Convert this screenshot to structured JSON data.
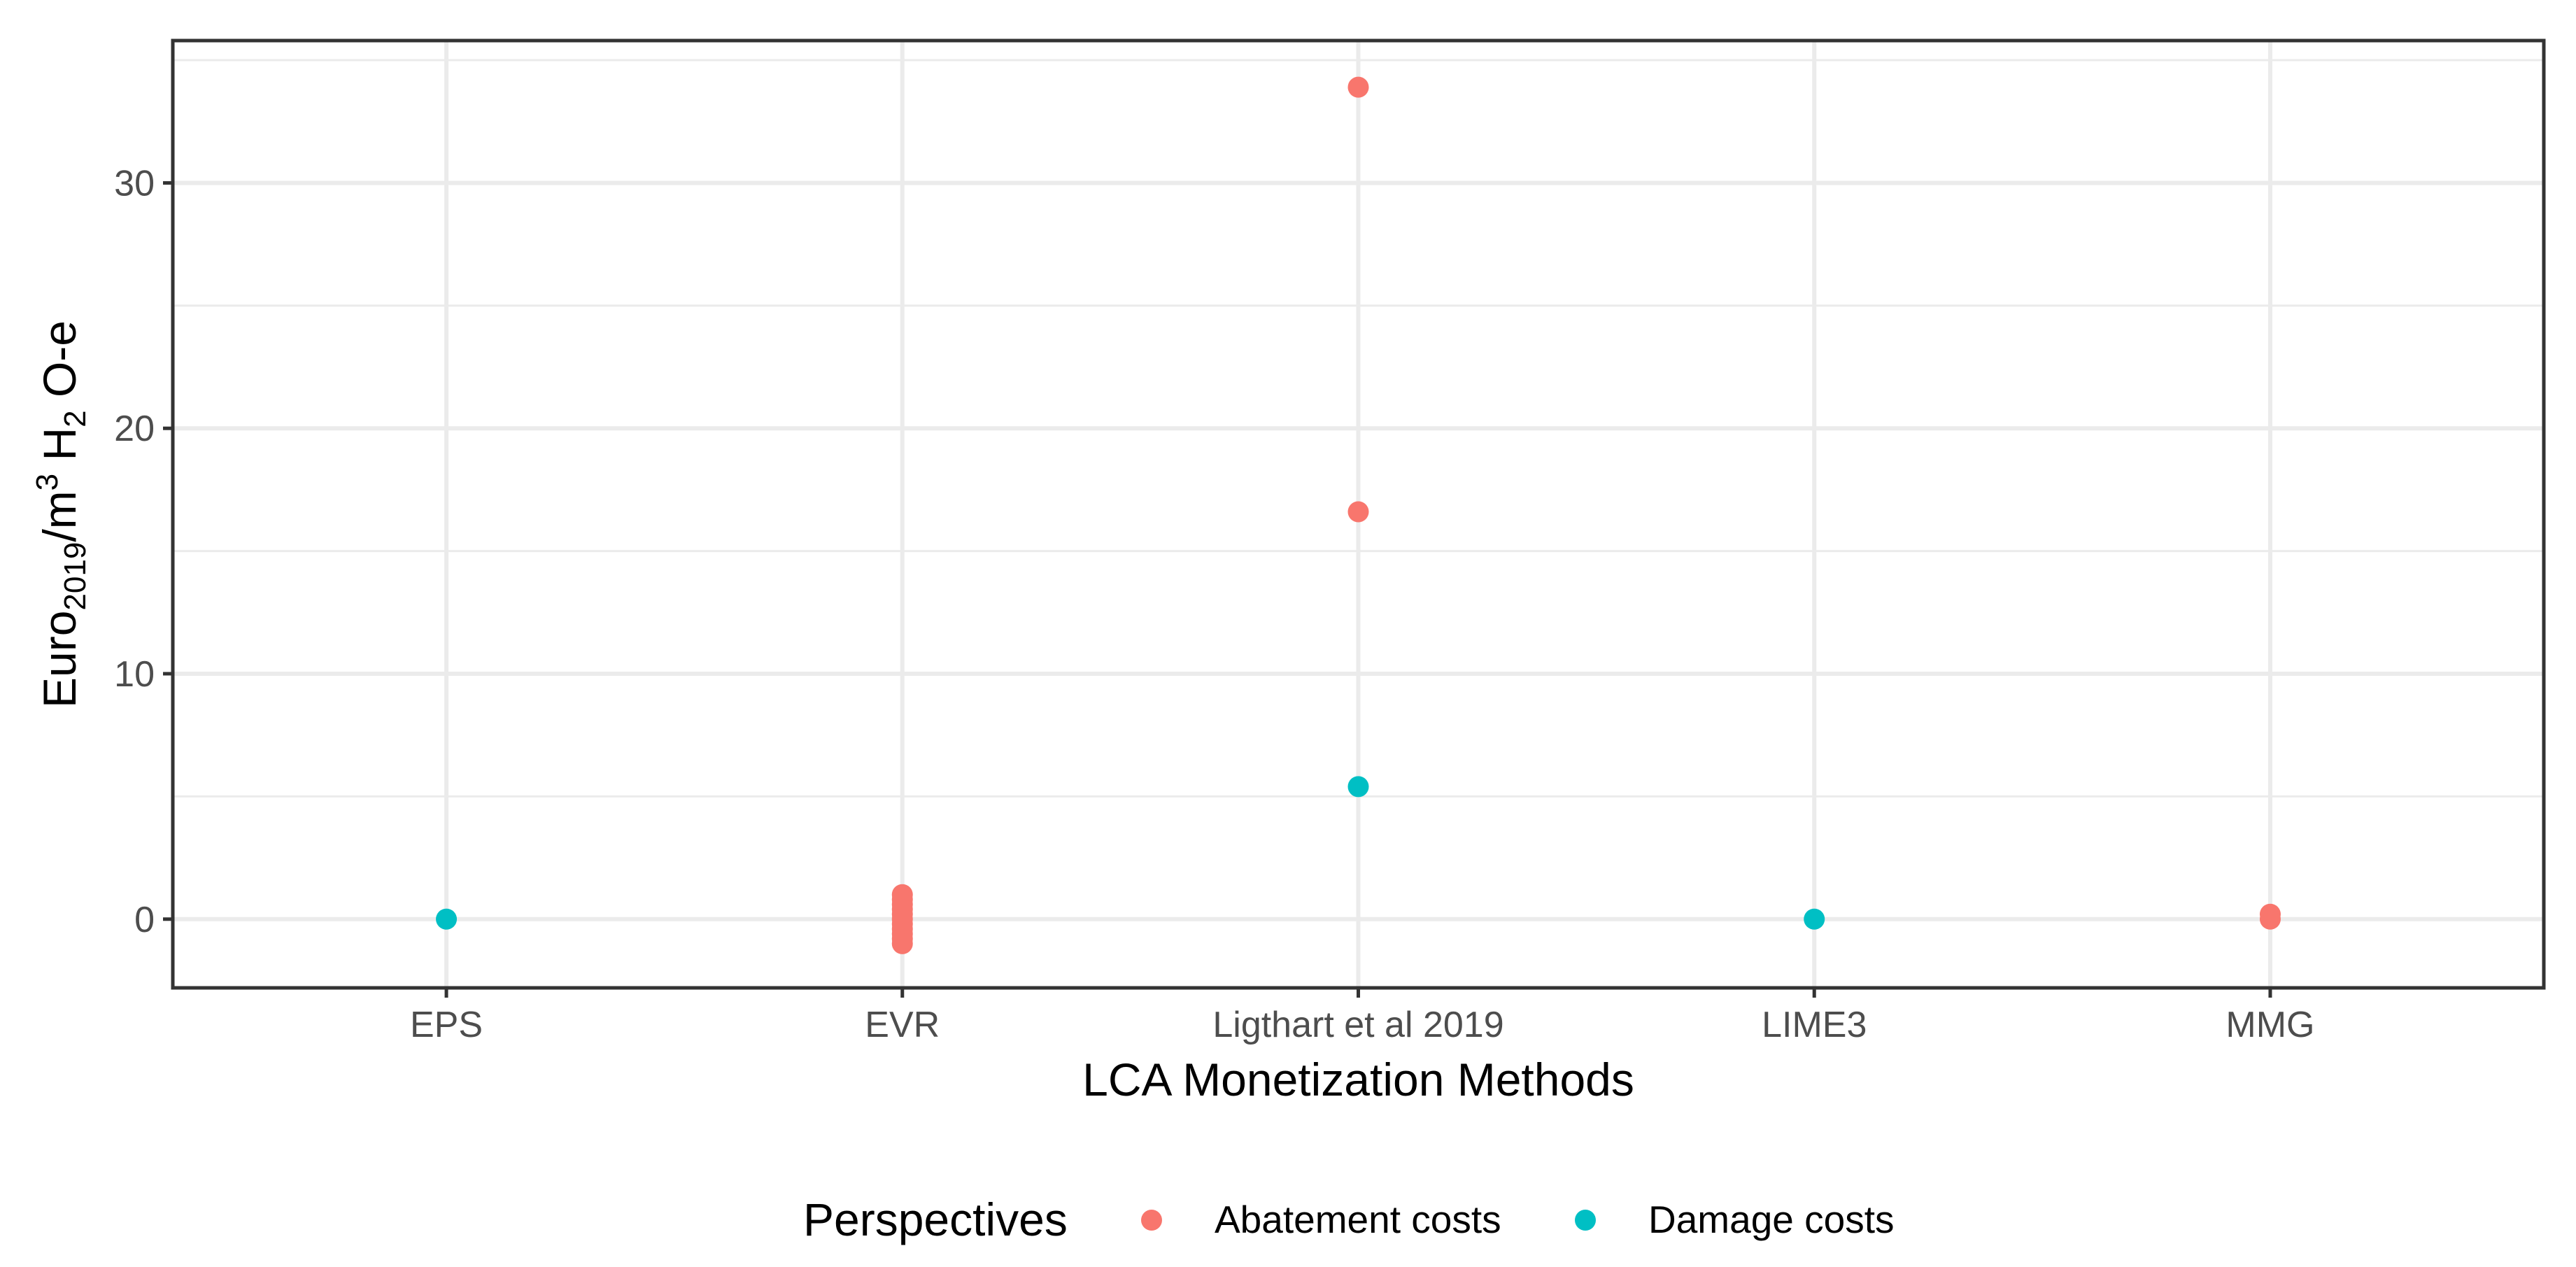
{
  "chart_data": {
    "type": "scatter",
    "title": "",
    "xlabel": "LCA Monetization Methods",
    "ylabel": {
      "base": "Euro",
      "sub1": "2019",
      "mid": "/m",
      "sup": "3",
      "space": " H",
      "sub2": "2",
      "end": " O-e"
    },
    "categories": [
      "EPS",
      "EVR",
      "Ligthart et al 2019",
      "LIME3",
      "MMG"
    ],
    "ylim": [
      -2.8,
      35.8
    ],
    "yticks": [
      0,
      10,
      20,
      30
    ],
    "ytick_labels": [
      "0",
      "10",
      "20",
      "30"
    ],
    "grid": true,
    "legend": {
      "title": "Perspectives",
      "position": "bottom"
    },
    "series": [
      {
        "name": "Abatement costs",
        "color": "#F8766D",
        "points": [
          {
            "x": "EVR",
            "y": 1.0
          },
          {
            "x": "EVR",
            "y": 0.8
          },
          {
            "x": "EVR",
            "y": 0.6
          },
          {
            "x": "EVR",
            "y": 0.4
          },
          {
            "x": "EVR",
            "y": 0.2
          },
          {
            "x": "EVR",
            "y": 0.0
          },
          {
            "x": "EVR",
            "y": -0.2
          },
          {
            "x": "EVR",
            "y": -0.4
          },
          {
            "x": "EVR",
            "y": -0.6
          },
          {
            "x": "EVR",
            "y": -0.8
          },
          {
            "x": "EVR",
            "y": -1.0
          },
          {
            "x": "Ligthart et al 2019",
            "y": 33.9
          },
          {
            "x": "Ligthart et al 2019",
            "y": 16.6
          },
          {
            "x": "MMG",
            "y": 0.2
          },
          {
            "x": "MMG",
            "y": 0.0
          }
        ]
      },
      {
        "name": "Damage costs",
        "color": "#00BFC4",
        "points": [
          {
            "x": "EPS",
            "y": 0.0
          },
          {
            "x": "Ligthart et al 2019",
            "y": 5.4
          },
          {
            "x": "LIME3",
            "y": 0.0
          }
        ]
      }
    ]
  }
}
